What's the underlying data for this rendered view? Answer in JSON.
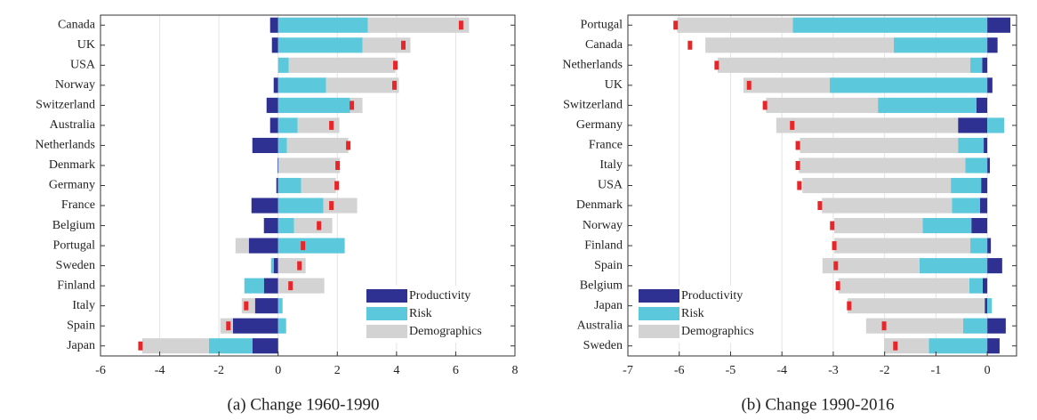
{
  "charts": [
    {
      "chart_data": {
        "type": "hbar_stacked",
        "caption": "(a) Change 1960-1990",
        "categories": [
          "Canada",
          "UK",
          "USA",
          "Norway",
          "Switzerland",
          "Australia",
          "Netherlands",
          "Denmark",
          "Germany",
          "France",
          "Belgium",
          "Portugal",
          "Sweden",
          "Finland",
          "Italy",
          "Spain",
          "Japan"
        ],
        "series": [
          {
            "name": "Productivity",
            "color": "#2e3192",
            "values": [
              -0.27,
              -0.21,
              0,
              -0.15,
              -0.39,
              -0.27,
              -0.87,
              -0.02,
              -0.06,
              -0.9,
              -0.48,
              -0.99,
              -0.15,
              -0.48,
              -0.78,
              -1.53,
              -0.87
            ]
          },
          {
            "name": "Risk",
            "color": "#5bc8dc",
            "values": [
              3.03,
              2.85,
              0.36,
              1.62,
              2.43,
              0.66,
              0.3,
              0.02,
              0.78,
              1.53,
              0.54,
              2.25,
              -0.09,
              -0.66,
              0.15,
              0.27,
              -1.47
            ]
          },
          {
            "name": "Demographics",
            "color": "#d3d3d3",
            "values": [
              3.42,
              1.62,
              3.6,
              2.46,
              0.42,
              1.41,
              2.07,
              2.07,
              1.17,
              1.14,
              1.29,
              -0.45,
              0.93,
              1.56,
              -0.45,
              -0.42,
              -2.25
            ]
          }
        ],
        "markers": {
          "color": "#e8262a",
          "values": [
            6.18,
            4.23,
            3.96,
            3.93,
            2.49,
            1.8,
            2.37,
            2.01,
            1.98,
            1.8,
            1.38,
            0.84,
            0.72,
            0.42,
            -1.08,
            -1.68,
            -4.65
          ]
        },
        "xlim": [
          -6,
          8
        ],
        "xticks": [
          -6,
          -4,
          -2,
          0,
          2,
          4,
          6,
          8
        ],
        "grid": true,
        "legend": "lower right"
      }
    },
    {
      "chart_data": {
        "type": "hbar_stacked",
        "caption": "(b) Change 1990-2016",
        "categories": [
          "Portugal",
          "Canada",
          "Netherlands",
          "UK",
          "Switzerland",
          "Germany",
          "France",
          "Italy",
          "USA",
          "Denmark",
          "Norway",
          "Finland",
          "Spain",
          "Belgium",
          "Japan",
          "Australia",
          "Sweden"
        ],
        "series": [
          {
            "name": "Productivity",
            "color": "#2e3192",
            "values": [
              0.45,
              0.2,
              -0.1,
              0.1,
              -0.21,
              -0.57,
              -0.07,
              0.05,
              -0.12,
              -0.14,
              -0.31,
              0.07,
              0.29,
              -0.09,
              -0.05,
              0.36,
              0.24
            ]
          },
          {
            "name": "Risk",
            "color": "#5bc8dc",
            "values": [
              -3.79,
              -1.82,
              -0.23,
              -3.07,
              -1.92,
              0.33,
              -0.5,
              -0.43,
              -0.59,
              -0.55,
              -0.95,
              -0.33,
              -1.32,
              -0.26,
              0.09,
              -0.47,
              -1.14
            ]
          },
          {
            "name": "Demographics",
            "color": "#d3d3d3",
            "values": [
              -2.25,
              -3.67,
              -4.92,
              -1.68,
              -2.18,
              -3.54,
              -3.08,
              -3.24,
              -2.89,
              -2.53,
              -1.72,
              -2.65,
              -1.89,
              -2.55,
              -2.67,
              -1.89,
              -0.87
            ]
          }
        ],
        "markers": {
          "color": "#e8262a",
          "values": [
            -6.07,
            -5.79,
            -5.27,
            -4.64,
            -4.33,
            -3.8,
            -3.69,
            -3.69,
            -3.66,
            -3.26,
            -3.02,
            -2.98,
            -2.95,
            -2.91,
            -2.69,
            -2.01,
            -1.79
          ]
        },
        "xlim": [
          -7,
          0.57
        ],
        "xticks": [
          -7,
          -6,
          -5,
          -4,
          -3,
          -2,
          -1,
          0
        ],
        "grid": true,
        "legend": "lower left"
      }
    }
  ]
}
